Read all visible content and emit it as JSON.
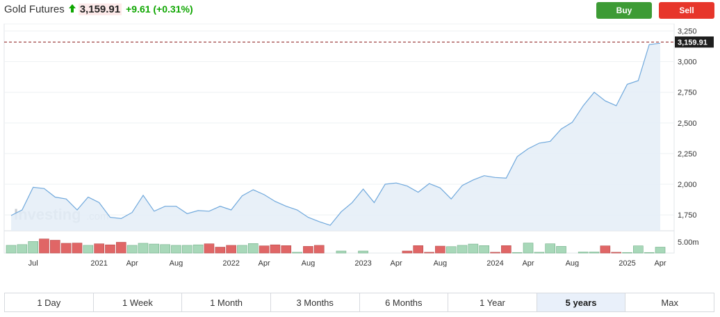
{
  "header": {
    "title": "Gold Futures",
    "arrow_icon": "up-arrow-icon",
    "price": "3,159.91",
    "change": "+9.61 (+0.31%)"
  },
  "actions": {
    "buy_label": "Buy",
    "sell_label": "Sell"
  },
  "colors": {
    "line": "#6fa8dc",
    "area": "#e4edf7",
    "volume_up": "#a8d8b9",
    "volume_down": "#e06666",
    "buy": "#3d9b35",
    "sell": "#e7362b",
    "price_tag": "#1e1e1e",
    "price_line": "#8b1a1a"
  },
  "watermark": {
    "brand": "Investing",
    "suffix": ".com"
  },
  "chart_data": {
    "type": "area",
    "series_name": "Gold Futures",
    "x_labels": [
      "Jul",
      "2021",
      "Apr",
      "Aug",
      "2022",
      "Apr",
      "Aug",
      "2023",
      "Apr",
      "Aug",
      "2024",
      "Apr",
      "Aug",
      "2025",
      "Apr"
    ],
    "x_label_months": [
      2,
      8,
      11,
      15,
      20,
      23,
      27,
      32,
      35,
      39,
      44,
      47,
      51,
      56,
      59
    ],
    "y_ticks": [
      "1,750",
      "2,000",
      "2,250",
      "2,500",
      "2,750",
      "3,000",
      "3,250"
    ],
    "y_tick_values": [
      1750,
      2000,
      2250,
      2500,
      2750,
      3000,
      3250
    ],
    "ylim": [
      1620,
      3310
    ],
    "current_price_label": "3,159.91",
    "current_price": 3159.91,
    "volume_label": "5.00m",
    "volume_max": 6.5,
    "prices": [
      1745,
      1790,
      1975,
      1965,
      1895,
      1880,
      1790,
      1895,
      1850,
      1730,
      1720,
      1770,
      1910,
      1780,
      1820,
      1820,
      1760,
      1785,
      1780,
      1820,
      1790,
      1905,
      1955,
      1915,
      1860,
      1820,
      1790,
      1730,
      1695,
      1665,
      1775,
      1850,
      1960,
      1850,
      2000,
      2010,
      1985,
      1935,
      2005,
      1970,
      1880,
      1990,
      2035,
      2070,
      2055,
      2050,
      2225,
      2290,
      2335,
      2350,
      2450,
      2505,
      2640,
      2750,
      2680,
      2640,
      2815,
      2845,
      3140,
      3150
    ],
    "volumes": [
      3.0,
      3.3,
      4.5,
      5.5,
      5.0,
      3.8,
      3.9,
      3.0,
      3.6,
      3.2,
      4.2,
      3.0,
      3.8,
      3.5,
      3.3,
      3.0,
      3.0,
      3.2,
      3.6,
      2.3,
      3.0,
      3.0,
      3.7,
      2.8,
      3.2,
      2.9,
      0.3,
      2.6,
      3.0,
      0,
      0.8,
      0,
      0.8,
      0,
      0,
      0,
      0.8,
      2.9,
      0.3,
      2.7,
      2.5,
      3.0,
      3.5,
      2.9,
      0.3,
      2.9,
      0.2,
      3.9,
      0.3,
      3.6,
      2.6,
      0,
      0.4,
      0.4,
      2.8,
      0.3,
      0.2,
      2.8,
      0.2,
      2.3
    ],
    "volume_up": [
      1,
      1,
      1,
      0,
      0,
      0,
      0,
      1,
      0,
      0,
      0,
      1,
      1,
      1,
      1,
      1,
      1,
      1,
      0,
      0,
      0,
      1,
      1,
      0,
      0,
      0,
      1,
      0,
      0,
      1,
      1,
      1,
      1,
      1,
      0,
      1,
      0,
      0,
      0,
      0,
      1,
      1,
      1,
      1,
      0,
      0,
      1,
      1,
      1,
      1,
      1,
      1,
      1,
      1,
      0,
      0,
      1,
      1,
      1,
      1
    ],
    "grid": true,
    "legend": "none"
  },
  "ranges": [
    {
      "label": "1 Day",
      "active": false
    },
    {
      "label": "1 Week",
      "active": false
    },
    {
      "label": "1 Month",
      "active": false
    },
    {
      "label": "3 Months",
      "active": false
    },
    {
      "label": "6 Months",
      "active": false
    },
    {
      "label": "1 Year",
      "active": false
    },
    {
      "label": "5 years",
      "active": true
    },
    {
      "label": "Max",
      "active": false
    }
  ]
}
